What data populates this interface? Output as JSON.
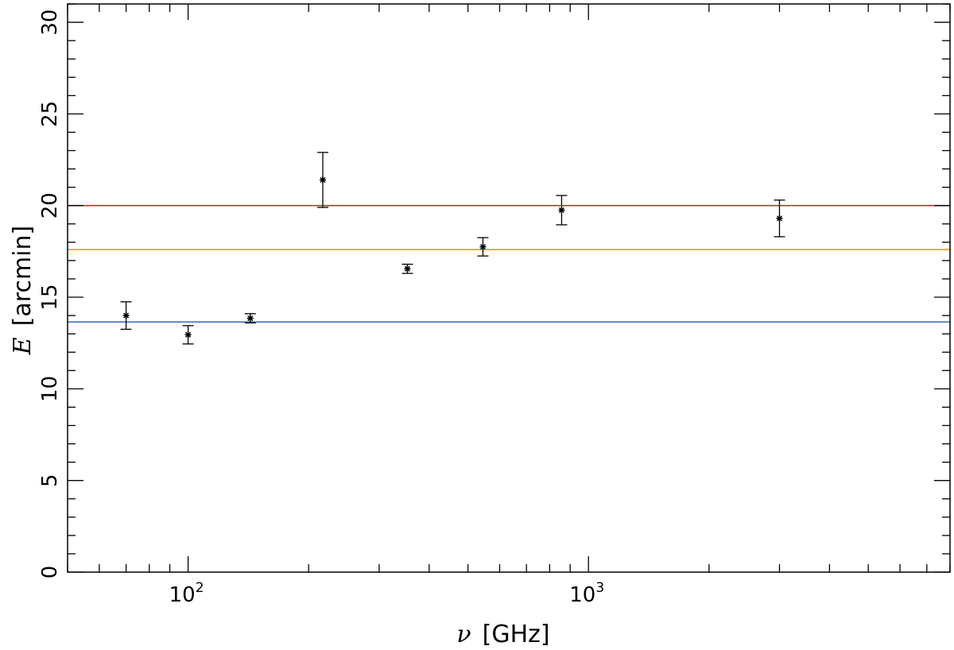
{
  "chart_data": {
    "type": "scatter",
    "title": "",
    "xscale": "log",
    "xlim": [
      50,
      8000
    ],
    "ylim": [
      0,
      31
    ],
    "xlabel": {
      "symbol": "ν",
      "unit": "[GHz]"
    },
    "ylabel": {
      "symbol": "E",
      "unit": "[arcmin]"
    },
    "x_ticks": [
      {
        "value": 100,
        "base": "10",
        "exp": "2"
      },
      {
        "value": 1000,
        "base": "10",
        "exp": "3"
      }
    ],
    "y_ticks": [
      {
        "value": 0,
        "label": "0"
      },
      {
        "value": 5,
        "label": "5"
      },
      {
        "value": 10,
        "label": "10"
      },
      {
        "value": 15,
        "label": "15"
      },
      {
        "value": 20,
        "label": "20"
      },
      {
        "value": 25,
        "label": "25"
      },
      {
        "value": 30,
        "label": "30"
      }
    ],
    "series": [
      {
        "marker": "asterisk",
        "color": "#000000",
        "points": [
          {
            "x": 70,
            "y": 14.0,
            "err": 0.75
          },
          {
            "x": 100,
            "y": 12.95,
            "err": 0.5
          },
          {
            "x": 143,
            "y": 13.85,
            "err": 0.25
          },
          {
            "x": 217,
            "y": 21.4,
            "err": 1.5
          },
          {
            "x": 353,
            "y": 16.55,
            "err": 0.25
          },
          {
            "x": 545,
            "y": 17.75,
            "err": 0.5
          },
          {
            "x": 857,
            "y": 19.75,
            "err": 0.8
          },
          {
            "x": 3000,
            "y": 19.3,
            "err": 1.0
          }
        ]
      }
    ],
    "reference_lines": [
      {
        "y": 20.0,
        "color": "#d62728"
      },
      {
        "y": 17.6,
        "color": "#ff9900"
      },
      {
        "y": 13.65,
        "color": "#4472c4"
      }
    ],
    "grid": false,
    "legend": "none"
  }
}
